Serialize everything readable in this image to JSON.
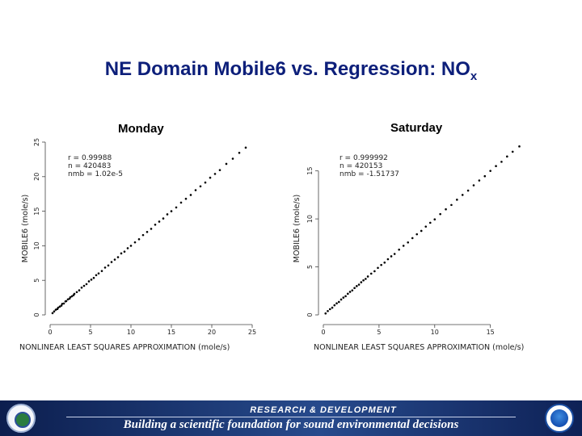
{
  "slide": {
    "title_main": "NE Domain Mobile6 vs. Regression: NO",
    "title_sub": "x"
  },
  "footer": {
    "top_text": "RESEARCH & DEVELOPMENT",
    "tagline": "Building a scientific foundation for sound environmental decisions",
    "left_logo": "epa-seal-icon",
    "right_logo": "noaa-logo-icon"
  },
  "chart_data": [
    {
      "type": "scatter",
      "title": "Monday",
      "xlabel": "NONLINEAR LEAST SQUARES APPROXIMATION (mole/s)",
      "ylabel": "MOBILE6 (mole/s)",
      "xlim": [
        0,
        25
      ],
      "ylim": [
        0,
        25
      ],
      "xticks": [
        0,
        5,
        10,
        15,
        20,
        25
      ],
      "yticks": [
        0,
        5,
        10,
        15,
        20,
        25
      ],
      "stats": [
        "r = 0.99988",
        "n = 420483",
        "nmb = 1.02e-5"
      ],
      "point_color": "#000000",
      "points": [
        [
          0.3,
          0.25
        ],
        [
          0.5,
          0.5
        ],
        [
          0.7,
          0.75
        ],
        [
          0.9,
          0.85
        ],
        [
          1.0,
          1.05
        ],
        [
          1.2,
          1.2
        ],
        [
          1.4,
          1.35
        ],
        [
          1.5,
          1.6
        ],
        [
          1.7,
          1.65
        ],
        [
          1.9,
          1.95
        ],
        [
          2.0,
          2.0
        ],
        [
          2.2,
          2.25
        ],
        [
          2.4,
          2.35
        ],
        [
          2.5,
          2.55
        ],
        [
          2.7,
          2.7
        ],
        [
          2.9,
          2.85
        ],
        [
          3.0,
          3.05
        ],
        [
          3.3,
          3.3
        ],
        [
          3.6,
          3.55
        ],
        [
          3.9,
          3.95
        ],
        [
          4.2,
          4.2
        ],
        [
          4.5,
          4.45
        ],
        [
          4.8,
          4.85
        ],
        [
          5.1,
          5.1
        ],
        [
          5.4,
          5.35
        ],
        [
          5.7,
          5.75
        ],
        [
          6.0,
          6.0
        ],
        [
          6.4,
          6.35
        ],
        [
          6.8,
          6.85
        ],
        [
          7.2,
          7.15
        ],
        [
          7.6,
          7.65
        ],
        [
          8.0,
          8.0
        ],
        [
          8.4,
          8.35
        ],
        [
          8.8,
          8.9
        ],
        [
          9.2,
          9.15
        ],
        [
          9.6,
          9.65
        ],
        [
          10.0,
          10.0
        ],
        [
          10.5,
          10.5
        ],
        [
          11.0,
          10.95
        ],
        [
          11.5,
          11.55
        ],
        [
          12.0,
          12.0
        ],
        [
          12.5,
          12.45
        ],
        [
          13.0,
          13.05
        ],
        [
          13.5,
          13.5
        ],
        [
          14.0,
          13.95
        ],
        [
          14.5,
          14.55
        ],
        [
          15.0,
          15.0
        ],
        [
          15.6,
          15.55
        ],
        [
          16.2,
          16.25
        ],
        [
          16.8,
          16.8
        ],
        [
          17.4,
          17.35
        ],
        [
          18.0,
          18.05
        ],
        [
          18.6,
          18.6
        ],
        [
          19.2,
          19.15
        ],
        [
          19.8,
          19.85
        ],
        [
          20.4,
          20.4
        ],
        [
          21.0,
          20.95
        ],
        [
          21.8,
          21.85
        ],
        [
          22.6,
          22.6
        ],
        [
          23.4,
          23.45
        ],
        [
          24.2,
          24.2
        ]
      ]
    },
    {
      "type": "scatter",
      "title": "Saturday",
      "xlabel": "NONLINEAR LEAST SQUARES APPROXIMATION (mole/s)",
      "ylabel": "MOBILE6 (mole/s)",
      "xlim": [
        0,
        18
      ],
      "ylim": [
        0,
        18
      ],
      "xticks": [
        0,
        5,
        10,
        15
      ],
      "yticks": [
        0,
        5,
        10,
        15
      ],
      "stats": [
        "r = 0.999992",
        "n = 420153",
        "nmb = -1.51737"
      ],
      "point_color": "#000000",
      "points": [
        [
          0.2,
          0.15
        ],
        [
          0.4,
          0.4
        ],
        [
          0.6,
          0.6
        ],
        [
          0.8,
          0.75
        ],
        [
          1.0,
          1.0
        ],
        [
          1.2,
          1.2
        ],
        [
          1.4,
          1.35
        ],
        [
          1.6,
          1.6
        ],
        [
          1.8,
          1.8
        ],
        [
          2.0,
          1.95
        ],
        [
          2.2,
          2.2
        ],
        [
          2.4,
          2.4
        ],
        [
          2.6,
          2.55
        ],
        [
          2.8,
          2.8
        ],
        [
          3.0,
          3.0
        ],
        [
          3.2,
          3.15
        ],
        [
          3.4,
          3.4
        ],
        [
          3.6,
          3.6
        ],
        [
          3.8,
          3.75
        ],
        [
          4.0,
          4.0
        ],
        [
          4.3,
          4.3
        ],
        [
          4.6,
          4.55
        ],
        [
          4.9,
          4.9
        ],
        [
          5.2,
          5.2
        ],
        [
          5.5,
          5.45
        ],
        [
          5.8,
          5.8
        ],
        [
          6.1,
          6.1
        ],
        [
          6.4,
          6.35
        ],
        [
          6.8,
          6.8
        ],
        [
          7.2,
          7.2
        ],
        [
          7.6,
          7.55
        ],
        [
          8.0,
          8.0
        ],
        [
          8.4,
          8.4
        ],
        [
          8.8,
          8.75
        ],
        [
          9.2,
          9.2
        ],
        [
          9.6,
          9.6
        ],
        [
          10.0,
          9.95
        ],
        [
          10.5,
          10.5
        ],
        [
          11.0,
          11.0
        ],
        [
          11.5,
          11.45
        ],
        [
          12.0,
          12.0
        ],
        [
          12.5,
          12.5
        ],
        [
          13.0,
          12.95
        ],
        [
          13.5,
          13.5
        ],
        [
          14.0,
          14.0
        ],
        [
          14.5,
          14.45
        ],
        [
          15.0,
          15.0
        ],
        [
          15.5,
          15.5
        ],
        [
          16.0,
          15.95
        ],
        [
          16.5,
          16.5
        ],
        [
          17.0,
          17.0
        ],
        [
          17.6,
          17.55
        ]
      ]
    }
  ]
}
